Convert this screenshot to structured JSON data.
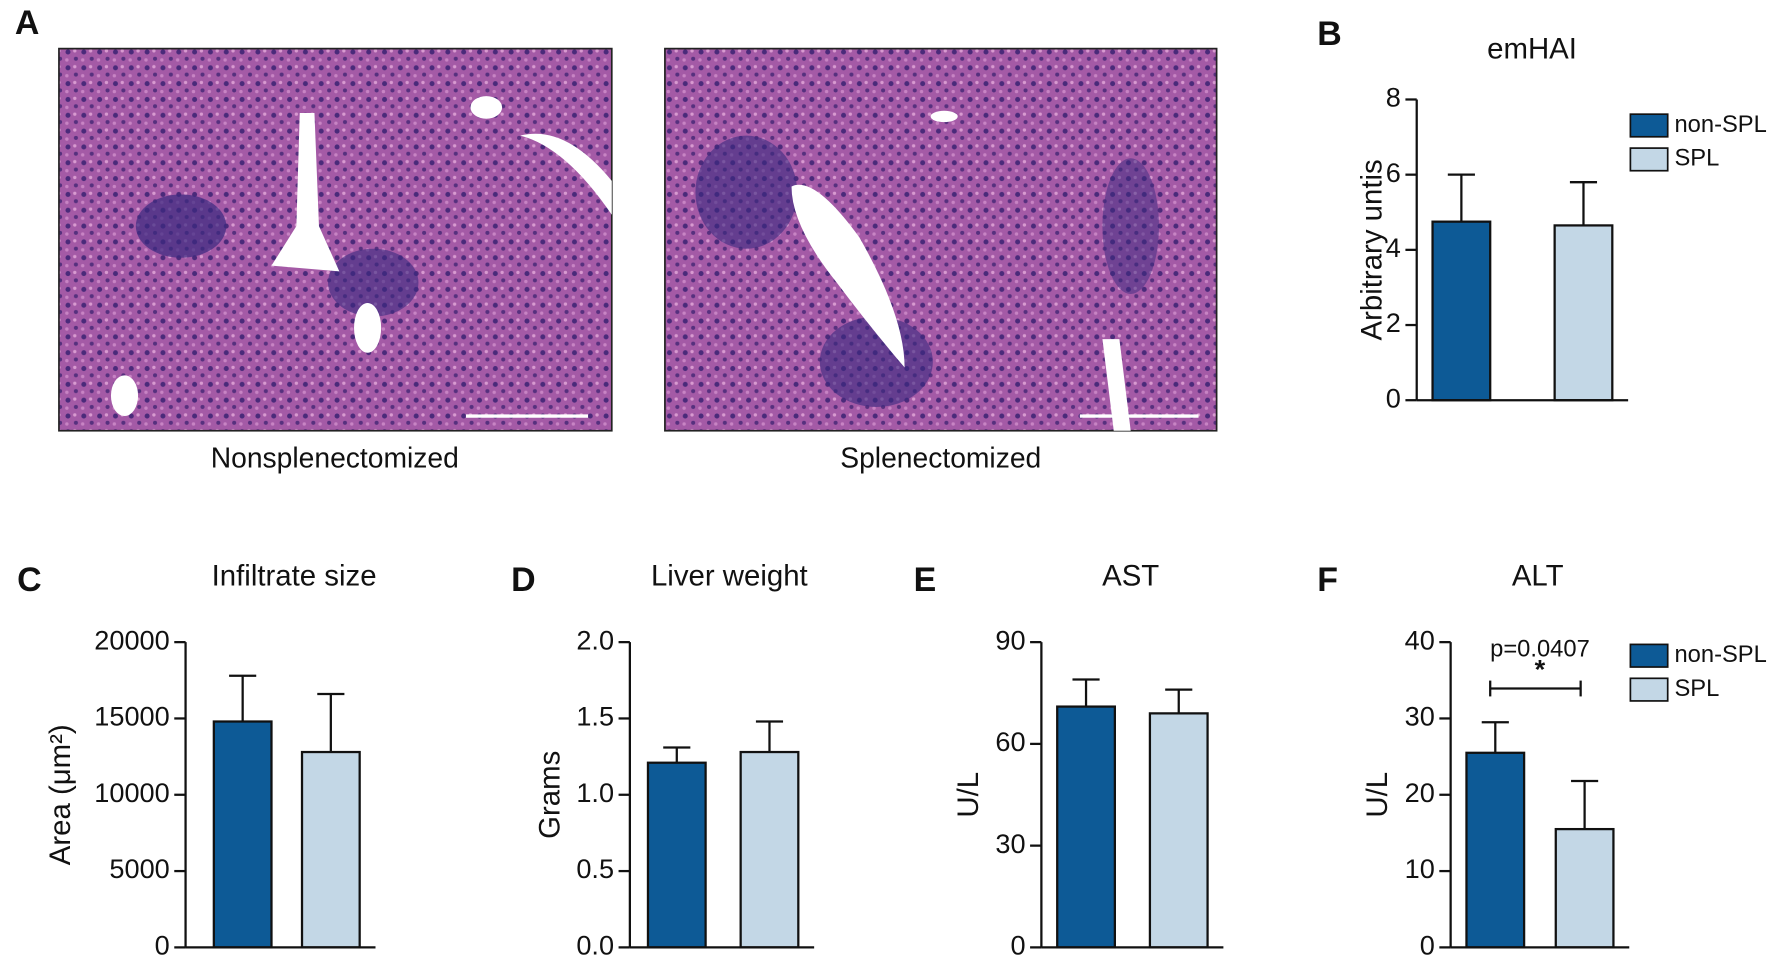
{
  "histology": {
    "panel": "A",
    "images": [
      {
        "caption": "Nonsplenectomized"
      },
      {
        "caption": "Splenectomized"
      }
    ]
  },
  "chart_data": [
    {
      "type": "bar",
      "panel": "B",
      "title": "emHAI",
      "y_label": "Arbitrary untis",
      "ylim": [
        0,
        8
      ],
      "yticks": [
        0,
        2,
        4,
        6,
        8
      ],
      "legend": "right",
      "series": [
        {
          "name": "non-SPL",
          "color": "#0d5a96",
          "values": [
            4.75
          ],
          "errors": [
            1.25
          ]
        },
        {
          "name": "SPL",
          "color": "#c3d7e6",
          "values": [
            4.65
          ],
          "errors": [
            1.15
          ]
        }
      ]
    },
    {
      "type": "bar",
      "panel": "C",
      "title": "Infiltrate size",
      "y_label": "Area (μm²)",
      "ylim": [
        0,
        20000
      ],
      "yticks": [
        0,
        5000,
        10000,
        15000,
        20000
      ],
      "series": [
        {
          "color": "#0d5a96",
          "values": [
            14800
          ],
          "errors": [
            3000
          ]
        },
        {
          "color": "#c3d7e6",
          "values": [
            12800
          ],
          "errors": [
            3800
          ]
        }
      ]
    },
    {
      "type": "bar",
      "panel": "D",
      "title": "Liver weight",
      "y_label": "Grams",
      "ylim": [
        0,
        2
      ],
      "yticks": [
        {
          "value": 0,
          "label": "0.0"
        },
        {
          "value": 0.5,
          "label": "0.5"
        },
        {
          "value": 1,
          "label": "1.0"
        },
        {
          "value": 1.5,
          "label": "1.5"
        },
        {
          "value": 2,
          "label": "2.0"
        }
      ],
      "series": [
        {
          "color": "#0d5a96",
          "values": [
            1.21
          ],
          "errors": [
            0.1
          ]
        },
        {
          "color": "#c3d7e6",
          "values": [
            1.28
          ],
          "errors": [
            0.2
          ]
        }
      ]
    },
    {
      "type": "bar",
      "panel": "E",
      "title": "AST",
      "y_label": "U/L",
      "ylim": [
        0,
        90
      ],
      "yticks": [
        0,
        30,
        60,
        90
      ],
      "series": [
        {
          "color": "#0d5a96",
          "values": [
            71
          ],
          "errors": [
            8
          ]
        },
        {
          "color": "#c3d7e6",
          "values": [
            69
          ],
          "errors": [
            7
          ]
        }
      ]
    },
    {
      "type": "bar",
      "panel": "F",
      "title": "ALT",
      "y_label": "U/L",
      "ylim": [
        0,
        40
      ],
      "yticks": [
        0,
        10,
        20,
        30,
        40
      ],
      "legend": "right",
      "annotations": [
        "p=0.0407",
        "*"
      ],
      "series": [
        {
          "name": "non-SPL",
          "color": "#0d5a96",
          "values": [
            25.5
          ],
          "errors": [
            4
          ]
        },
        {
          "name": "SPL",
          "color": "#c3d7e6",
          "values": [
            15.5
          ],
          "errors": [
            6.3
          ]
        }
      ]
    }
  ]
}
